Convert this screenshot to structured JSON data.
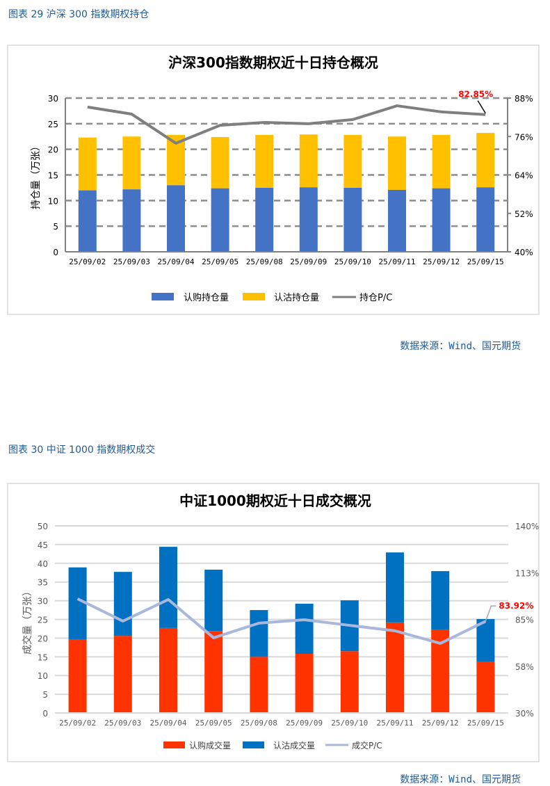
{
  "figures": [
    {
      "caption": "图表 29  沪深 300 指数期权持仓",
      "source": "数据来源：Wind、国元期货"
    },
    {
      "caption": "图表 30  中证 1000 指数期权成交",
      "source": "数据来源：Wind、国元期货"
    }
  ],
  "chart_data": [
    {
      "type": "bar",
      "stacked": true,
      "title": "沪深300指数期权近十日持仓概况",
      "ylabel": "持仓量（万张）",
      "ylim": [
        0,
        30
      ],
      "yticks": [
        "0",
        "5",
        "10",
        "15",
        "20",
        "25",
        "30"
      ],
      "y2lim": [
        40,
        88
      ],
      "y2ticks": [
        "40%",
        "52%",
        "64%",
        "76%",
        "88%"
      ],
      "grid": "dashed",
      "categories": [
        "25/09/02",
        "25/09/03",
        "25/09/04",
        "25/09/05",
        "25/09/08",
        "25/09/09",
        "25/09/10",
        "25/09/11",
        "25/09/12",
        "25/09/15"
      ],
      "series": [
        {
          "name": "认购持仓量",
          "kind": "bar",
          "color": "#4472c4",
          "values": [
            12.0,
            12.2,
            13.0,
            12.4,
            12.5,
            12.6,
            12.5,
            12.1,
            12.4,
            12.6
          ]
        },
        {
          "name": "认沽持仓量",
          "kind": "bar",
          "color": "#ffc000",
          "values": [
            10.3,
            10.3,
            9.8,
            10.0,
            10.3,
            10.3,
            10.3,
            10.4,
            10.4,
            10.6
          ]
        },
        {
          "name": "持仓P/C",
          "kind": "line",
          "axis": "right",
          "color": "#7f7f7f",
          "values": [
            85.2,
            83.0,
            73.9,
            79.5,
            80.4,
            80.0,
            81.3,
            85.6,
            83.7,
            82.85
          ]
        }
      ],
      "annotation": "82.85%",
      "legend_position": "bottom"
    },
    {
      "type": "bar",
      "stacked": true,
      "title": "中证1000期权近十日成交概况",
      "ylabel": "成交量（万张）",
      "ylim": [
        0,
        50
      ],
      "yticks": [
        "0",
        "5",
        "10",
        "15",
        "20",
        "25",
        "30",
        "35",
        "40",
        "45",
        "50"
      ],
      "y2lim": [
        30,
        140
      ],
      "y2ticks": [
        "30%",
        "58%",
        "85%",
        "113%",
        "140%"
      ],
      "grid": "solid",
      "categories": [
        "25/09/02",
        "25/09/03",
        "25/09/04",
        "25/09/05",
        "25/09/08",
        "25/09/09",
        "25/09/10",
        "25/09/11",
        "25/09/12",
        "25/09/15"
      ],
      "series": [
        {
          "name": "认购成交量",
          "kind": "bar",
          "color": "#ff3300",
          "values": [
            19.7,
            20.6,
            22.7,
            21.9,
            15.0,
            15.8,
            16.5,
            24.2,
            22.3,
            13.6
          ]
        },
        {
          "name": "认沽成交量",
          "kind": "bar",
          "color": "#0070c0",
          "values": [
            19.2,
            17.1,
            21.7,
            16.4,
            12.5,
            13.4,
            13.6,
            18.7,
            15.6,
            11.5
          ]
        },
        {
          "name": "成交P/C",
          "kind": "line",
          "axis": "right",
          "color": "#a9b7dc",
          "values": [
            97.1,
            84.0,
            96.7,
            74.2,
            82.8,
            84.8,
            81.5,
            78.3,
            70.9,
            83.92
          ]
        }
      ],
      "annotation": "83.92%",
      "legend_position": "bottom"
    }
  ]
}
